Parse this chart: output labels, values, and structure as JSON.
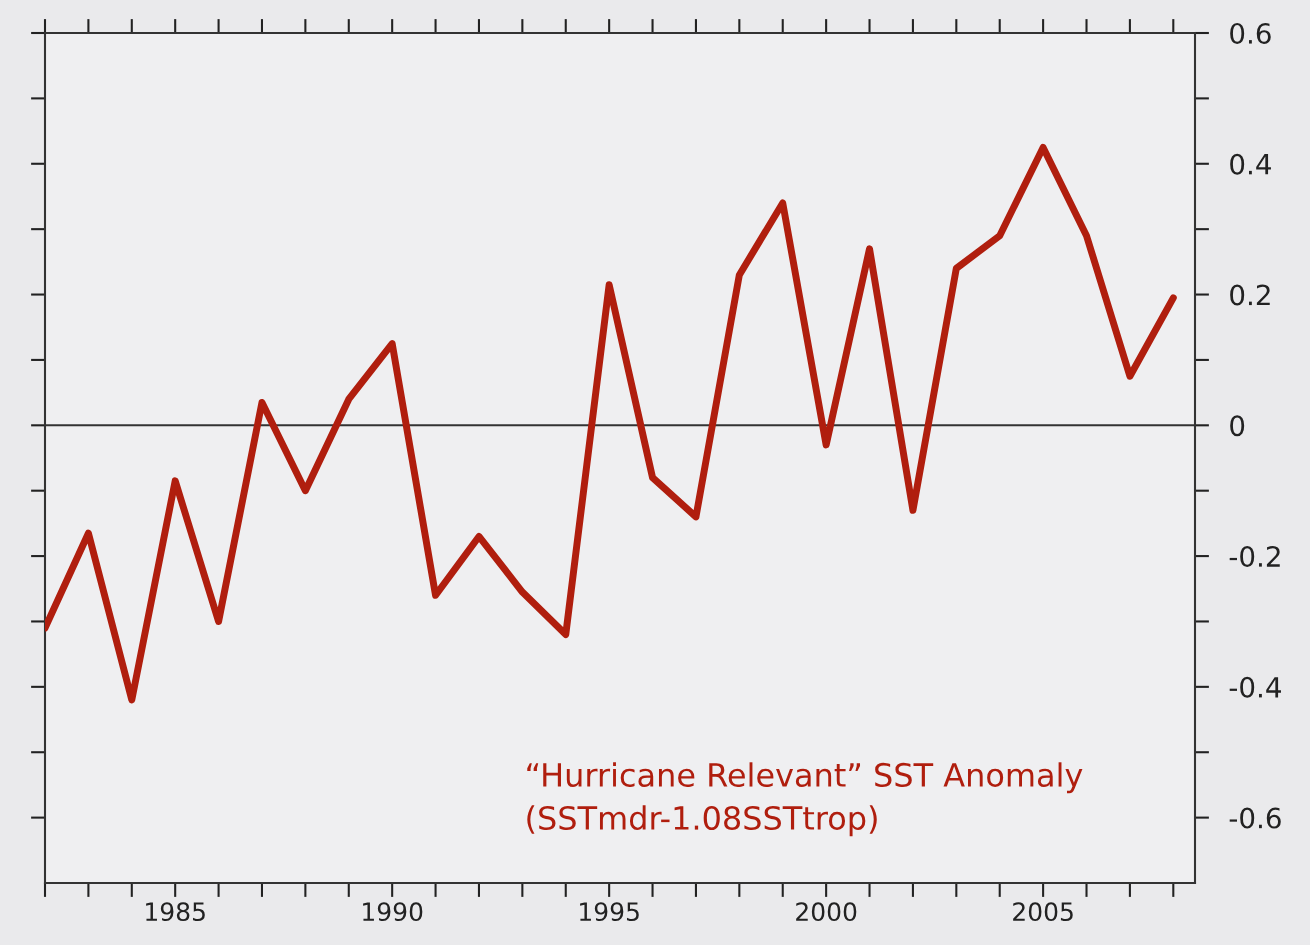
{
  "chart_data": {
    "type": "line",
    "x": [
      1982,
      1983,
      1984,
      1985,
      1986,
      1987,
      1988,
      1989,
      1990,
      1991,
      1992,
      1993,
      1994,
      1995,
      1996,
      1997,
      1998,
      1999,
      2000,
      2001,
      2002,
      2003,
      2004,
      2005,
      2006,
      2007,
      2008
    ],
    "series": [
      {
        "color": "#b01e0e",
        "values": [
          -0.31,
          -0.165,
          -0.42,
          -0.085,
          -0.3,
          0.035,
          -0.1,
          0.04,
          0.125,
          -0.26,
          -0.17,
          -0.255,
          -0.32,
          0.215,
          -0.08,
          -0.14,
          0.23,
          0.34,
          -0.03,
          0.27,
          -0.13,
          0.24,
          0.29,
          0.425,
          0.29,
          0.075,
          0.195
        ]
      }
    ],
    "xlim": [
      1982,
      2008.5
    ],
    "xticks": [
      {
        "value": 1982,
        "label": null
      },
      {
        "value": 1983,
        "label": null
      },
      {
        "value": 1984,
        "label": null
      },
      1985,
      {
        "value": 1986,
        "label": null
      },
      {
        "value": 1987,
        "label": null
      },
      {
        "value": 1988,
        "label": null
      },
      {
        "value": 1989,
        "label": null
      },
      1990,
      {
        "value": 1991,
        "label": null
      },
      {
        "value": 1992,
        "label": null
      },
      {
        "value": 1993,
        "label": null
      },
      {
        "value": 1994,
        "label": null
      },
      1995,
      {
        "value": 1996,
        "label": null
      },
      {
        "value": 1997,
        "label": null
      },
      {
        "value": 1998,
        "label": null
      },
      {
        "value": 1999,
        "label": null
      },
      2000,
      {
        "value": 2001,
        "label": null
      },
      {
        "value": 2002,
        "label": null
      },
      {
        "value": 2003,
        "label": null
      },
      {
        "value": 2004,
        "label": null
      },
      2005,
      {
        "value": 2006,
        "label": null
      },
      {
        "value": 2007,
        "label": null
      },
      {
        "value": 2008,
        "label": null
      }
    ],
    "ylim": [
      -0.7,
      0.6
    ],
    "yticks": [
      -0.6,
      {
        "value": -0.5,
        "label": null
      },
      -0.4,
      {
        "value": -0.3,
        "label": null
      },
      -0.2,
      {
        "value": -0.1,
        "label": null
      },
      0,
      {
        "value": 0.1,
        "label": null
      },
      0.2,
      {
        "value": 0.3,
        "label": null
      },
      0.4,
      {
        "value": 0.5,
        "label": null
      },
      0.6
    ],
    "ref_lines": [
      {
        "axis": "y",
        "value": 0,
        "color": "#333333",
        "line_style": "solid"
      }
    ],
    "annotations": [
      "“Hurricane Relevant” SST Anomaly\n(SSTmdr-1.08SSTtrop)"
    ],
    "grid": false,
    "legend": false,
    "marker": "none",
    "line_style": "solid"
  }
}
